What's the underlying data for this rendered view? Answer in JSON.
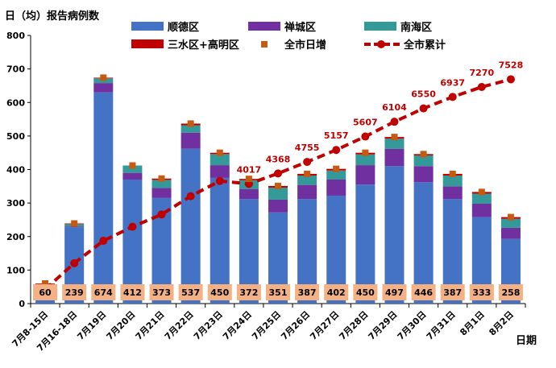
{
  "header": {
    "title": "日（均）报告病例数",
    "x_axis_title": "日期"
  },
  "legend": {
    "items": [
      {
        "label": "顺德区",
        "color": "#4472c4",
        "kind": "bar"
      },
      {
        "label": "禅城区",
        "color": "#7030a0",
        "kind": "bar"
      },
      {
        "label": "南海区",
        "color": "#339999",
        "kind": "bar"
      },
      {
        "label": "三水区+高明区",
        "color": "#c00000",
        "kind": "bar"
      },
      {
        "label": "全市日增",
        "color": "#c55a11",
        "kind": "marker"
      },
      {
        "label": "全市累计",
        "color": "#c00000",
        "kind": "line"
      }
    ]
  },
  "chart_data": {
    "type": "bar",
    "stacked": true,
    "title": "",
    "ylabel": "日（均）报告病例数",
    "xlabel": "日期",
    "ylim": [
      0,
      800
    ],
    "yticks": [
      0,
      100,
      200,
      300,
      400,
      500,
      600,
      700,
      800
    ],
    "categories": [
      "7月8-15日",
      "7月16-18日",
      "7月19日",
      "7月20日",
      "7月21日",
      "7月22日",
      "7月23日",
      "7月24日",
      "7月25日",
      "7月26日",
      "7月27日",
      "7月28日",
      "7月29日",
      "7月30日",
      "7月31日",
      "8月1日",
      "8月2日"
    ],
    "series": [
      {
        "name": "顺德区",
        "color": "#4472c4",
        "values": [
          55,
          228,
          630,
          370,
          315,
          462,
          375,
          312,
          272,
          312,
          322,
          355,
          410,
          362,
          312,
          258,
          193
        ]
      },
      {
        "name": "禅城区",
        "color": "#7030a0",
        "values": [
          2,
          2,
          28,
          20,
          30,
          48,
          38,
          30,
          38,
          42,
          48,
          58,
          52,
          48,
          38,
          40,
          33
        ]
      },
      {
        "name": "南海区",
        "color": "#339999",
        "values": [
          1,
          7,
          14,
          22,
          24,
          22,
          33,
          26,
          36,
          28,
          27,
          32,
          30,
          32,
          32,
          30,
          27
        ]
      },
      {
        "name": "三水区+高明区",
        "color": "#c00000",
        "values": [
          2,
          2,
          2,
          0,
          4,
          5,
          4,
          4,
          5,
          5,
          5,
          5,
          5,
          4,
          5,
          5,
          5
        ]
      }
    ],
    "daily_new": {
      "name": "全市日增",
      "color": "#c55a11",
      "values": [
        60,
        239,
        674,
        412,
        373,
        537,
        450,
        372,
        351,
        387,
        402,
        450,
        497,
        446,
        387,
        333,
        258
      ]
    },
    "cumulative": {
      "name": "全市累计",
      "color": "#c00000",
      "secondary_axis_range": [
        0,
        9000
      ],
      "values": [
        480,
        1356,
        2107,
        2579,
        2991,
        3605,
        4114,
        4017,
        4368,
        4755,
        5157,
        5607,
        6104,
        6550,
        6937,
        7270,
        7528
      ],
      "labels": [
        "",
        "",
        "",
        "",
        "",
        "",
        "",
        "4017",
        "4368",
        "4755",
        "5157",
        "5607",
        "6104",
        "6550",
        "6937",
        "7270",
        "7528"
      ]
    },
    "grid": false,
    "legend_position": "top"
  }
}
